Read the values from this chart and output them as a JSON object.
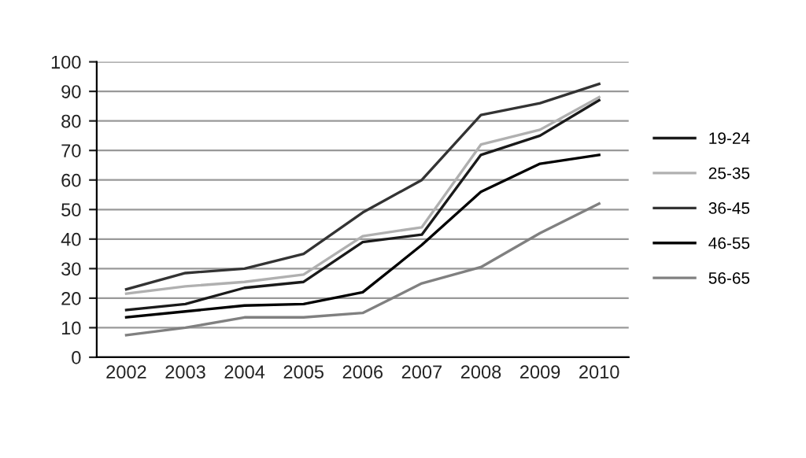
{
  "chart_data": {
    "type": "line",
    "categories": [
      "2002",
      "2003",
      "2004",
      "2005",
      "2006",
      "2007",
      "2008",
      "2009",
      "2010"
    ],
    "series": [
      {
        "name": "19-24",
        "color": "#1a1a1a",
        "values": [
          16,
          18,
          23.5,
          25.5,
          39,
          41.5,
          68.5,
          75,
          87
        ]
      },
      {
        "name": "25-35",
        "color": "#b0b0b0",
        "values": [
          21.5,
          24,
          25.5,
          28,
          41,
          44,
          72,
          77,
          88
        ]
      },
      {
        "name": "36-45",
        "color": "#333333",
        "values": [
          23,
          28.5,
          30,
          35,
          49,
          60,
          82,
          86,
          92.5
        ]
      },
      {
        "name": "46-55",
        "color": "#000000",
        "values": [
          13.5,
          15.5,
          17.5,
          18,
          22,
          38,
          56,
          65.5,
          68.5
        ]
      },
      {
        "name": "56-65",
        "color": "#808080",
        "values": [
          7.5,
          10,
          13.5,
          13.5,
          15,
          25,
          30.5,
          42,
          52
        ]
      }
    ],
    "ylim": [
      0,
      100
    ],
    "yticks": [
      0,
      10,
      20,
      30,
      40,
      50,
      60,
      70,
      80,
      90,
      100
    ],
    "grid": "y",
    "legend": "right",
    "marker": "none",
    "line_style": "solid"
  }
}
